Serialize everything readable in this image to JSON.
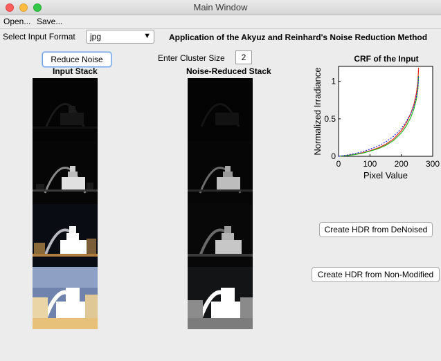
{
  "window": {
    "title": "Main Window"
  },
  "menu": [
    "Open...",
    "Save..."
  ],
  "format": {
    "label": "Select Input Format",
    "selected": "jpg"
  },
  "heading": "Application of the Akyuz and Reinhard's Noise Reduction Method",
  "reduce_button": "Reduce Noise",
  "cluster": {
    "label": "Enter Cluster Size",
    "value": "2"
  },
  "input_stack": {
    "title": "Input Stack"
  },
  "reduced_stack": {
    "title": "Noise-Reduced Stack"
  },
  "buttons": {
    "hdr_denoised": "Create HDR from DeNoised",
    "hdr_nonmodified": "Create HDR from Non-Modified"
  },
  "colors": {
    "red": "#e8251b",
    "green": "#22b822",
    "blue": "#2424d8"
  },
  "chart_data": {
    "type": "line",
    "title": "CRF of the Input",
    "xlabel": "Pixel Value",
    "ylabel": "Normalized Irradiance",
    "xlim": [
      0,
      300
    ],
    "ylim": [
      0,
      1.2
    ],
    "xticks": [
      "0",
      "100",
      "200",
      "300"
    ],
    "yticks": [
      "0",
      "0.5",
      "1"
    ],
    "series": [
      {
        "color": "red",
        "style": "solid",
        "x": [
          0,
          25,
          50,
          75,
          100,
          125,
          150,
          175,
          200,
          215,
          230,
          240,
          248,
          253,
          255
        ],
        "y": [
          0,
          0.01,
          0.025,
          0.045,
          0.075,
          0.11,
          0.16,
          0.23,
          0.34,
          0.44,
          0.57,
          0.69,
          0.84,
          1.0,
          1.18
        ]
      },
      {
        "color": "green",
        "style": "solid",
        "x": [
          0,
          25,
          50,
          75,
          100,
          125,
          150,
          175,
          200,
          215,
          230,
          240,
          248,
          253,
          255
        ],
        "y": [
          0,
          0.008,
          0.022,
          0.04,
          0.068,
          0.1,
          0.145,
          0.21,
          0.31,
          0.4,
          0.52,
          0.63,
          0.76,
          0.9,
          1.07
        ]
      },
      {
        "color": "blue",
        "style": "dotted",
        "x": [
          0,
          25,
          50,
          75,
          100,
          125,
          150,
          175,
          200,
          215,
          230,
          240,
          248,
          253,
          255
        ],
        "y": [
          0,
          0.015,
          0.035,
          0.06,
          0.095,
          0.135,
          0.19,
          0.265,
          0.37,
          0.46,
          0.57,
          0.67,
          0.79,
          0.92,
          1.08
        ]
      }
    ]
  }
}
